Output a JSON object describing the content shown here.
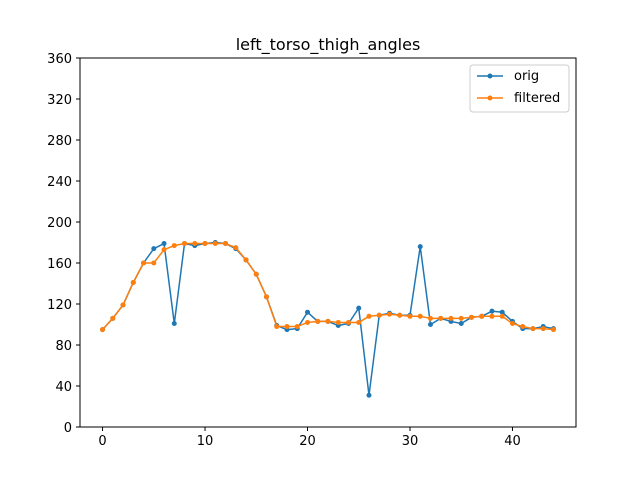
{
  "chart_data": {
    "type": "line",
    "title": "left_torso_thigh_angles",
    "xlabel": "",
    "ylabel": "",
    "xlim": [
      -2.2,
      46.2
    ],
    "ylim": [
      0,
      360
    ],
    "xticks": [
      0,
      10,
      20,
      30,
      40
    ],
    "yticks": [
      0,
      40,
      80,
      120,
      160,
      200,
      240,
      280,
      320,
      360
    ],
    "grid": false,
    "legend": "top-right",
    "x": [
      0,
      1,
      2,
      3,
      4,
      5,
      6,
      7,
      8,
      9,
      10,
      11,
      12,
      13,
      14,
      15,
      16,
      17,
      18,
      19,
      20,
      21,
      22,
      23,
      24,
      25,
      26,
      27,
      28,
      29,
      30,
      31,
      32,
      33,
      34,
      35,
      36,
      37,
      38,
      39,
      40,
      41,
      42,
      43,
      44
    ],
    "series": [
      {
        "name": "orig",
        "color": "#1f77b4",
        "values": [
          95,
          106,
          119,
          141,
          160,
          174,
          179,
          101,
          179,
          177,
          179,
          180,
          179,
          174,
          163,
          149,
          127,
          99,
          95,
          96,
          112,
          103,
          103,
          99,
          101,
          116,
          31,
          109,
          111,
          109,
          109,
          176,
          100,
          106,
          103,
          101,
          107,
          108,
          113,
          112,
          103,
          96,
          96,
          98,
          96
        ]
      },
      {
        "name": "filtered",
        "color": "#ff7f0e",
        "values": [
          95,
          106,
          119,
          141,
          160,
          160,
          173,
          177,
          179,
          179,
          179,
          179,
          179,
          175,
          163,
          149,
          127,
          98,
          98,
          98,
          102,
          103,
          103,
          102,
          102,
          102,
          108,
          109,
          110,
          109,
          108,
          108,
          106,
          106,
          106,
          106,
          107,
          108,
          108,
          108,
          101,
          98,
          96,
          96,
          95
        ]
      }
    ]
  }
}
